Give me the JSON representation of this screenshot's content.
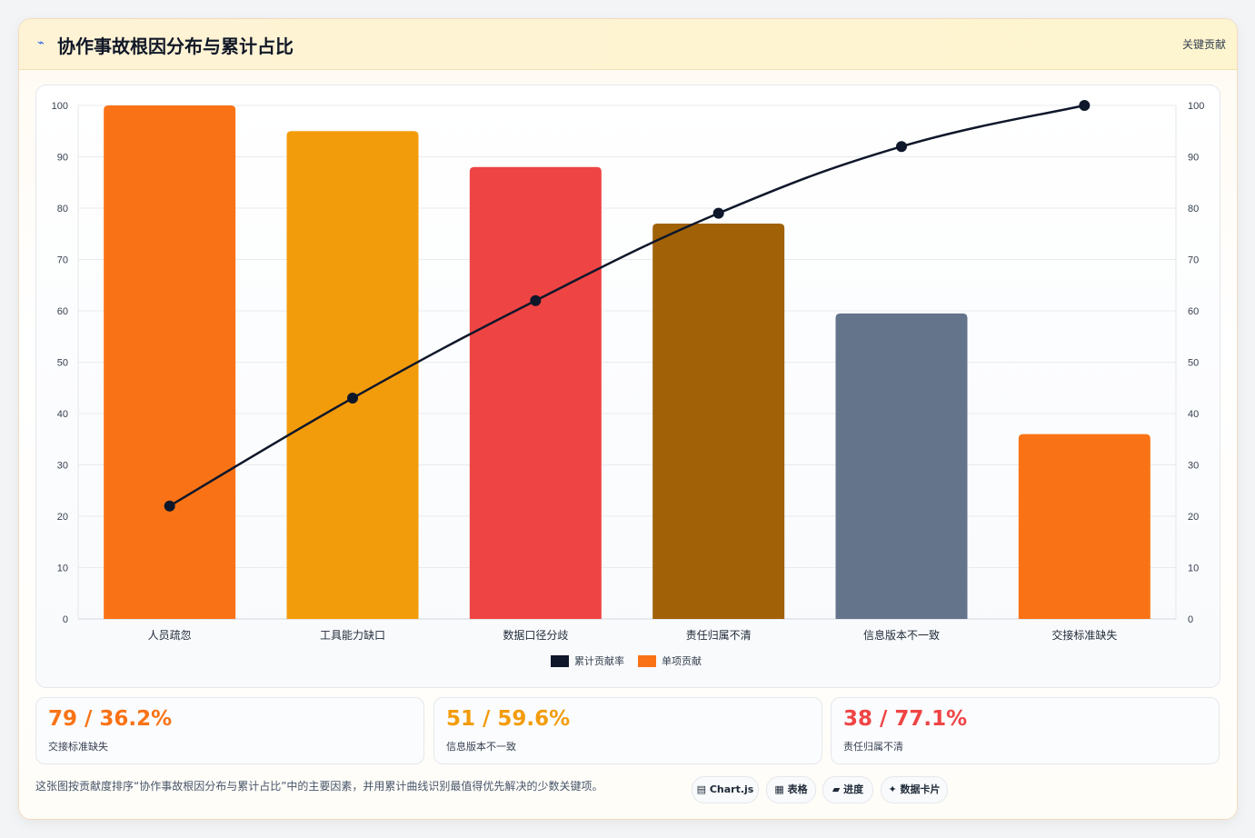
{
  "header": {
    "icon": "pulse-icon",
    "title": "协作事故根因分布与累计占比",
    "tag": "关键贡献"
  },
  "chart_data": {
    "type": "bar",
    "categories": [
      "人员疏忽",
      "工具能力缺口",
      "数据口径分歧",
      "责任归属不清",
      "信息版本不一致",
      "交接标准缺失"
    ],
    "series": [
      {
        "name": "单项贡献",
        "type": "bar",
        "values": [
          100,
          95,
          88,
          77,
          59.5,
          36
        ],
        "colors": [
          "#f97316",
          "#f39c0b",
          "#ef4444",
          "#a16207",
          "#64748b",
          "#f97316"
        ]
      },
      {
        "name": "累计贡献率",
        "type": "line",
        "values": [
          22,
          43,
          62,
          79,
          92,
          100
        ],
        "color": "#0f172a"
      }
    ],
    "ylim": [
      0,
      100
    ],
    "y2lim": [
      0,
      100
    ],
    "yticks": [
      0,
      10,
      20,
      30,
      40,
      50,
      60,
      70,
      80,
      90,
      100
    ],
    "grid": true,
    "legend": "bottom-center"
  },
  "stats": [
    {
      "value": "79 / 36.2%",
      "label": "交接标准缺失",
      "color": "#f97316"
    },
    {
      "value": "51 / 59.6%",
      "label": "信息版本不一致",
      "color": "#f39c0b"
    },
    {
      "value": "38 / 77.1%",
      "label": "责任归属不清",
      "color": "#ef4444"
    }
  ],
  "footer": {
    "note": "这张图按贡献度排序“协作事故根因分布与累计占比”中的主要因素，并用累计曲线识别最值得优先解决的少数关键项。",
    "chips": [
      {
        "label": "▤ Chart.js",
        "icon": "chart-icon"
      },
      {
        "label": "▦ 表格",
        "icon": "table-icon"
      },
      {
        "label": "▰ 进度",
        "icon": "progress-icon"
      },
      {
        "label": "✦ 数据卡片",
        "icon": "sparkle-icon"
      }
    ]
  }
}
